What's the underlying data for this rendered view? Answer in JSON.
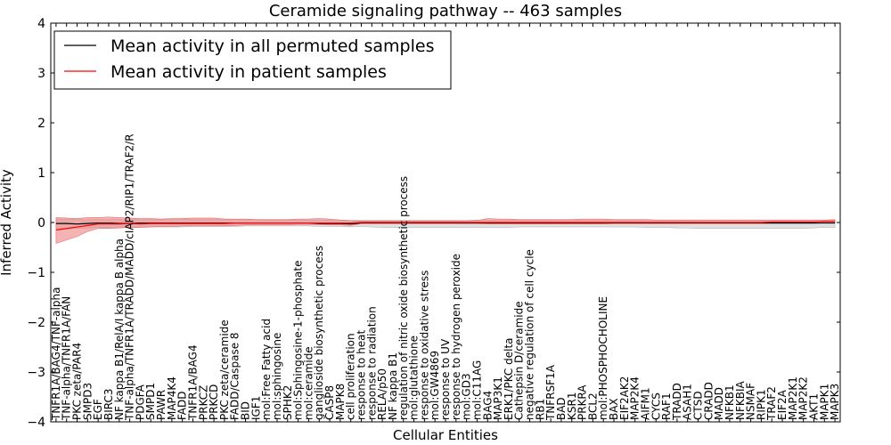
{
  "chart_data": {
    "type": "line",
    "title": "Ceramide signaling pathway -- 463 samples",
    "xlabel": "Cellular Entities",
    "ylabel": "Inferred Activity",
    "ylim": [
      -4,
      4
    ],
    "yticks": [
      -4,
      -3,
      -2,
      -1,
      0,
      1,
      2,
      3,
      4
    ],
    "ytick_labels": [
      "−4",
      "−3",
      "−2",
      "−1",
      "0",
      "1",
      "2",
      "3",
      "4"
    ],
    "grid": false,
    "legend": {
      "placement": "top-left",
      "entries": [
        {
          "label": "Mean activity in all permuted samples",
          "color": "#000000"
        },
        {
          "label": "Mean activity in patient samples",
          "color": "#ff0000"
        }
      ]
    },
    "categories": [
      "TNFR1A/BAG4/TNF-alpha",
      "TNF-alpha/TNFR1A/FAN",
      "PKC zeta/PAR4",
      "SMPD3",
      "EGF",
      "BIRC3",
      "NF kappa B1/RelA/I kappa B alpha",
      "TNF-alpha/TNFR1A/TRADD/MADD/cIAP2/RIP1/TRAF2/R",
      "PDGFA",
      "SMPD1",
      "PAWR",
      "MAP4K4",
      "FADD",
      "TNFR1A/BAG4",
      "PRKCZ",
      "PRKCD",
      "PKC zeta/ceramide",
      "FADD/Caspase 8",
      "BID",
      "IGF1",
      "mol:Free Fatty acid",
      "mol:sphingosine",
      "SPHK2",
      "mol:Sphingosine-1-phosphate",
      "mol:ceramide",
      "ganglioside biosynthetic process",
      "CASP8",
      "MAPK8",
      "cell proliferation",
      "response to heat",
      "response to radiation",
      "RELA/p50",
      "NF kappa B1",
      "regulation of nitric oxide biosynthetic process",
      "mol:glutathione",
      "response to oxidative stress",
      "mol:GW4869",
      "response to UV",
      "response to hydrogen peroxide",
      "mol:GD3",
      "mol:C11AG",
      "BAG4",
      "MAP3K1",
      "ERK1/PKC delta",
      "Cathepsin D/ceramide",
      "negative regulation of cell cycle",
      "RB1",
      "TNFRSF1A",
      "BAD",
      "KSR1",
      "PRKRA",
      "BCL2",
      "mol:PHOSPHOCHOLINE",
      "BAX",
      "EIF2AK2",
      "MAP2K4",
      "AIFM1",
      "CYCS",
      "RAF1",
      "TRADD",
      "ASAH1",
      "CTSD",
      "CRADD",
      "MADD",
      "NFKB1",
      "NFKBIA",
      "NSMAF",
      "RIPK1",
      "TRAF2",
      "EIF2A",
      "MAP2K1",
      "MAP2K2",
      "AKT1",
      "MAPK1",
      "MAPK3"
    ],
    "series": [
      {
        "name": "Mean activity in all permuted samples",
        "color": "#000000",
        "band_color": "#cccccc",
        "values": [
          -0.02,
          -0.02,
          -0.03,
          -0.02,
          -0.01,
          -0.01,
          -0.02,
          -0.02,
          -0.01,
          -0.01,
          -0.01,
          -0.01,
          -0.01,
          -0.01,
          -0.01,
          -0.01,
          -0.01,
          -0.01,
          -0.01,
          -0.01,
          -0.01,
          -0.01,
          -0.01,
          -0.01,
          -0.01,
          -0.02,
          -0.02,
          -0.02,
          -0.03,
          -0.01,
          -0.01,
          -0.01,
          -0.01,
          -0.01,
          -0.01,
          -0.01,
          -0.01,
          -0.01,
          -0.01,
          -0.01,
          -0.01,
          -0.01,
          -0.01,
          -0.01,
          -0.01,
          -0.01,
          -0.01,
          -0.01,
          -0.01,
          -0.01,
          -0.01,
          -0.01,
          -0.01,
          -0.01,
          -0.01,
          -0.01,
          -0.01,
          -0.01,
          -0.01,
          -0.01,
          -0.01,
          -0.01,
          -0.01,
          -0.01,
          -0.01,
          -0.01,
          -0.01,
          -0.01,
          -0.01,
          -0.01,
          -0.01,
          -0.01,
          -0.01,
          -0.01,
          -0.01
        ],
        "lower": [
          -0.12,
          -0.12,
          -0.12,
          -0.11,
          -0.1,
          -0.1,
          -0.1,
          -0.1,
          -0.09,
          -0.09,
          -0.09,
          -0.09,
          -0.09,
          -0.08,
          -0.08,
          -0.08,
          -0.08,
          -0.08,
          -0.07,
          -0.07,
          -0.07,
          -0.07,
          -0.07,
          -0.07,
          -0.07,
          -0.08,
          -0.08,
          -0.08,
          -0.09,
          -0.08,
          -0.09,
          -0.1,
          -0.1,
          -0.1,
          -0.1,
          -0.1,
          -0.1,
          -0.1,
          -0.1,
          -0.1,
          -0.1,
          -0.1,
          -0.1,
          -0.1,
          -0.09,
          -0.09,
          -0.09,
          -0.09,
          -0.09,
          -0.09,
          -0.09,
          -0.09,
          -0.09,
          -0.09,
          -0.09,
          -0.09,
          -0.1,
          -0.1,
          -0.1,
          -0.11,
          -0.11,
          -0.12,
          -0.12,
          -0.12,
          -0.12,
          -0.12,
          -0.12,
          -0.12,
          -0.12,
          -0.12,
          -0.12,
          -0.12,
          -0.11,
          -0.1,
          -0.1
        ],
        "upper": [
          0.07,
          0.07,
          0.06,
          0.06,
          0.06,
          0.06,
          0.06,
          0.06,
          0.06,
          0.06,
          0.06,
          0.06,
          0.06,
          0.06,
          0.06,
          0.06,
          0.06,
          0.06,
          0.06,
          0.06,
          0.05,
          0.05,
          0.05,
          0.05,
          0.05,
          0.05,
          0.05,
          0.05,
          0.04,
          0.05,
          0.05,
          0.05,
          0.05,
          0.05,
          0.05,
          0.05,
          0.05,
          0.05,
          0.05,
          0.05,
          0.05,
          0.05,
          0.05,
          0.05,
          0.05,
          0.05,
          0.05,
          0.05,
          0.05,
          0.05,
          0.05,
          0.05,
          0.05,
          0.05,
          0.05,
          0.05,
          0.05,
          0.05,
          0.05,
          0.05,
          0.05,
          0.05,
          0.05,
          0.05,
          0.05,
          0.05,
          0.05,
          0.05,
          0.05,
          0.05,
          0.05,
          0.05,
          0.05,
          0.05,
          0.05
        ]
      },
      {
        "name": "Mean activity in patient samples",
        "color": "#ff0000",
        "band_color": "#f08080",
        "values": [
          -0.15,
          -0.12,
          -0.09,
          -0.06,
          -0.03,
          -0.03,
          -0.03,
          -0.02,
          -0.03,
          -0.02,
          -0.02,
          -0.02,
          -0.02,
          -0.02,
          -0.02,
          -0.02,
          -0.02,
          -0.01,
          -0.01,
          -0.01,
          -0.01,
          -0.01,
          -0.01,
          -0.01,
          -0.01,
          -0.01,
          -0.01,
          -0.01,
          -0.01,
          0.0,
          0.0,
          0.0,
          0.0,
          0.0,
          0.0,
          0.0,
          0.0,
          0.0,
          0.0,
          0.0,
          0.0,
          0.0,
          0.0,
          0.0,
          0.0,
          0.0,
          0.0,
          0.0,
          0.0,
          0.0,
          0.0,
          0.0,
          0.0,
          0.0,
          0.0,
          0.0,
          0.0,
          0.0,
          0.0,
          0.0,
          0.0,
          0.0,
          0.0,
          0.0,
          0.0,
          0.0,
          0.0,
          0.0,
          0.01,
          0.01,
          0.01,
          0.01,
          0.01,
          0.02,
          0.02
        ],
        "lower": [
          -0.42,
          -0.35,
          -0.28,
          -0.18,
          -0.12,
          -0.12,
          -0.11,
          -0.1,
          -0.1,
          -0.09,
          -0.08,
          -0.08,
          -0.07,
          -0.07,
          -0.07,
          -0.07,
          -0.07,
          -0.06,
          -0.05,
          -0.05,
          -0.05,
          -0.05,
          -0.05,
          -0.04,
          -0.04,
          -0.04,
          -0.05,
          -0.05,
          -0.06,
          -0.02,
          -0.02,
          -0.02,
          -0.02,
          -0.02,
          -0.02,
          -0.02,
          -0.02,
          -0.02,
          -0.02,
          -0.02,
          -0.02,
          -0.03,
          -0.03,
          -0.03,
          -0.03,
          -0.03,
          -0.03,
          -0.03,
          -0.03,
          -0.03,
          -0.03,
          -0.03,
          -0.03,
          -0.02,
          -0.02,
          -0.02,
          -0.02,
          -0.02,
          -0.02,
          -0.02,
          -0.02,
          -0.02,
          -0.02,
          -0.02,
          -0.02,
          -0.02,
          -0.02,
          -0.02,
          -0.02,
          -0.02,
          -0.02,
          -0.02,
          -0.02,
          -0.01,
          -0.01
        ],
        "upper": [
          0.1,
          0.09,
          0.08,
          0.1,
          0.1,
          0.11,
          0.1,
          0.09,
          0.08,
          0.08,
          0.07,
          0.08,
          0.08,
          0.09,
          0.09,
          0.09,
          0.07,
          0.07,
          0.07,
          0.06,
          0.06,
          0.06,
          0.06,
          0.07,
          0.07,
          0.08,
          0.07,
          0.05,
          0.04,
          0.03,
          0.03,
          0.03,
          0.03,
          0.03,
          0.03,
          0.03,
          0.03,
          0.03,
          0.03,
          0.03,
          0.04,
          0.08,
          0.07,
          0.07,
          0.06,
          0.06,
          0.06,
          0.06,
          0.06,
          0.06,
          0.07,
          0.07,
          0.07,
          0.06,
          0.06,
          0.06,
          0.06,
          0.05,
          0.05,
          0.05,
          0.05,
          0.05,
          0.05,
          0.05,
          0.05,
          0.05,
          0.05,
          0.05,
          0.05,
          0.05,
          0.05,
          0.05,
          0.05,
          0.05,
          0.06
        ]
      }
    ]
  }
}
